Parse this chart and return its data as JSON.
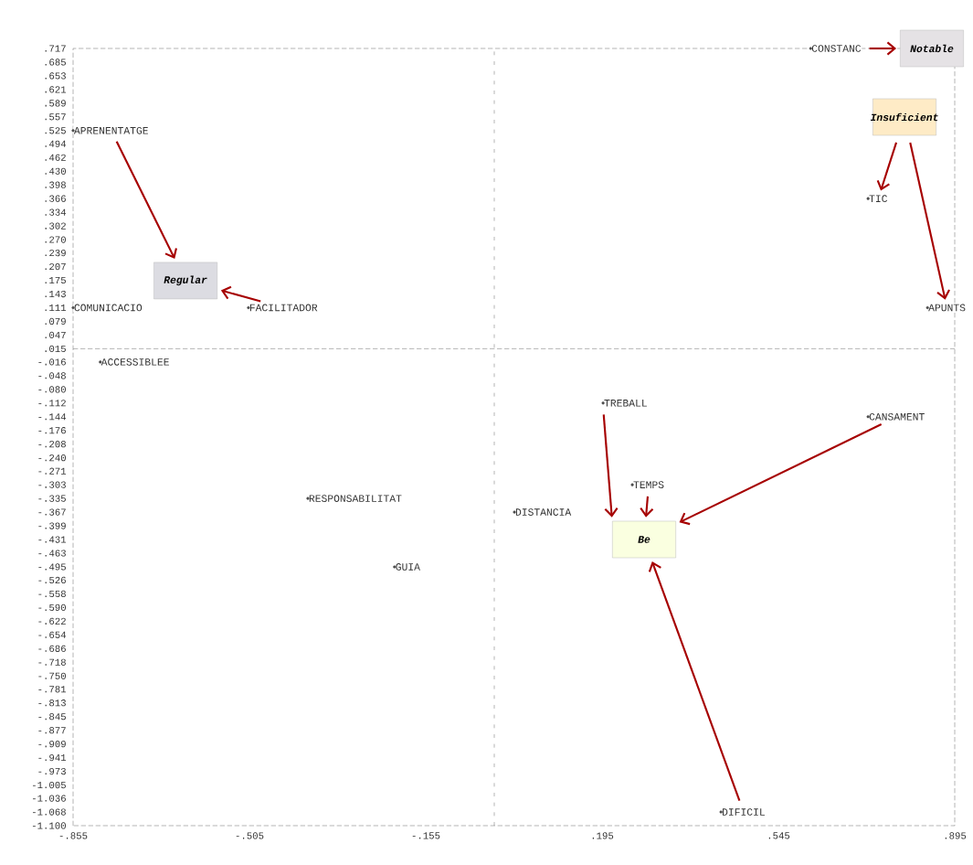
{
  "chart_data": {
    "type": "scatter",
    "marker": "circle",
    "x": [
      0.609,
      -0.855,
      0.723,
      -0.855,
      -0.507,
      0.841,
      -0.801,
      0.197,
      0.723,
      0.255,
      -0.389,
      0.021,
      -0.217,
      0.431
    ],
    "values": [
      0.717,
      0.525,
      0.366,
      0.111,
      0.111,
      0.111,
      -0.016,
      -0.112,
      -0.144,
      -0.303,
      -0.335,
      -0.367,
      -0.495,
      -1.068
    ],
    "value_labels": [
      "CONSTANC",
      "APRENENTATGE",
      "TIC",
      "COMUNICACIO",
      "FACILITADOR",
      "APUNTS",
      "ACCESSIBLEE",
      "TREBALL",
      "CANSAMENT",
      "TEMPS",
      "RESPONSABILITAT",
      "DISTANCIA",
      "GUIA",
      "DIFICIL"
    ],
    "annotations": [
      "Regular",
      "Notable",
      "Insuficient",
      "Be"
    ],
    "ref_lines": [
      {
        "axis": "y",
        "value": 0.015,
        "line_style": "dashed"
      },
      {
        "axis": "x",
        "value": -0.019,
        "line_style": "dotted"
      }
    ],
    "xlim": [
      -0.855,
      0.895
    ],
    "ylim": [
      -1.1,
      0.717
    ],
    "xticks": [
      {
        "value": -0.855,
        "label": "-.855"
      },
      {
        "value": -0.505,
        "label": "-.505"
      },
      {
        "value": -0.155,
        "label": "-.155"
      },
      {
        "value": 0.195,
        "label": ".195"
      },
      {
        "value": 0.545,
        "label": ".545"
      },
      {
        "value": 0.895,
        "label": ".895"
      }
    ],
    "yticks": [
      {
        "value": 0.717,
        "label": ".717"
      },
      {
        "value": 0.685,
        "label": ".685"
      },
      {
        "value": 0.653,
        "label": ".653"
      },
      {
        "value": 0.621,
        "label": ".621"
      },
      {
        "value": 0.589,
        "label": ".589"
      },
      {
        "value": 0.557,
        "label": ".557"
      },
      {
        "value": 0.525,
        "label": ".525"
      },
      {
        "value": 0.494,
        "label": ".494"
      },
      {
        "value": 0.462,
        "label": ".462"
      },
      {
        "value": 0.43,
        "label": ".430"
      },
      {
        "value": 0.398,
        "label": ".398"
      },
      {
        "value": 0.366,
        "label": ".366"
      },
      {
        "value": 0.334,
        "label": ".334"
      },
      {
        "value": 0.302,
        "label": ".302"
      },
      {
        "value": 0.27,
        "label": ".270"
      },
      {
        "value": 0.239,
        "label": ".239"
      },
      {
        "value": 0.207,
        "label": ".207"
      },
      {
        "value": 0.175,
        "label": ".175"
      },
      {
        "value": 0.143,
        "label": ".143"
      },
      {
        "value": 0.111,
        "label": ".111"
      },
      {
        "value": 0.079,
        "label": ".079"
      },
      {
        "value": 0.047,
        "label": ".047"
      },
      {
        "value": 0.015,
        "label": ".015"
      },
      {
        "value": -0.016,
        "label": "-.016"
      },
      {
        "value": -0.048,
        "label": "-.048"
      },
      {
        "value": -0.08,
        "label": "-.080"
      },
      {
        "value": -0.112,
        "label": "-.112"
      },
      {
        "value": -0.144,
        "label": "-.144"
      },
      {
        "value": -0.176,
        "label": "-.176"
      },
      {
        "value": -0.208,
        "label": "-.208"
      },
      {
        "value": -0.24,
        "label": "-.240"
      },
      {
        "value": -0.271,
        "label": "-.271"
      },
      {
        "value": -0.303,
        "label": "-.303"
      },
      {
        "value": -0.335,
        "label": "-.335"
      },
      {
        "value": -0.367,
        "label": "-.367"
      },
      {
        "value": -0.399,
        "label": "-.399"
      },
      {
        "value": -0.431,
        "label": "-.431"
      },
      {
        "value": -0.463,
        "label": "-.463"
      },
      {
        "value": -0.495,
        "label": "-.495"
      },
      {
        "value": -0.526,
        "label": "-.526"
      },
      {
        "value": -0.558,
        "label": "-.558"
      },
      {
        "value": -0.59,
        "label": "-.590"
      },
      {
        "value": -0.622,
        "label": "-.622"
      },
      {
        "value": -0.654,
        "label": "-.654"
      },
      {
        "value": -0.686,
        "label": "-.686"
      },
      {
        "value": -0.718,
        "label": "-.718"
      },
      {
        "value": -0.75,
        "label": "-.750"
      },
      {
        "value": -0.781,
        "label": "-.781"
      },
      {
        "value": -0.813,
        "label": "-.813"
      },
      {
        "value": -0.845,
        "label": "-.845"
      },
      {
        "value": -0.877,
        "label": "-.877"
      },
      {
        "value": -0.909,
        "label": "-.909"
      },
      {
        "value": -0.941,
        "label": "-.941"
      },
      {
        "value": -0.973,
        "label": "-.973"
      },
      {
        "value": -1.005,
        "label": "-1.005"
      },
      {
        "value": -1.036,
        "label": "-1.036"
      },
      {
        "value": -1.068,
        "label": "-1.068"
      },
      {
        "value": -1.1,
        "label": "-1.100"
      }
    ]
  }
}
